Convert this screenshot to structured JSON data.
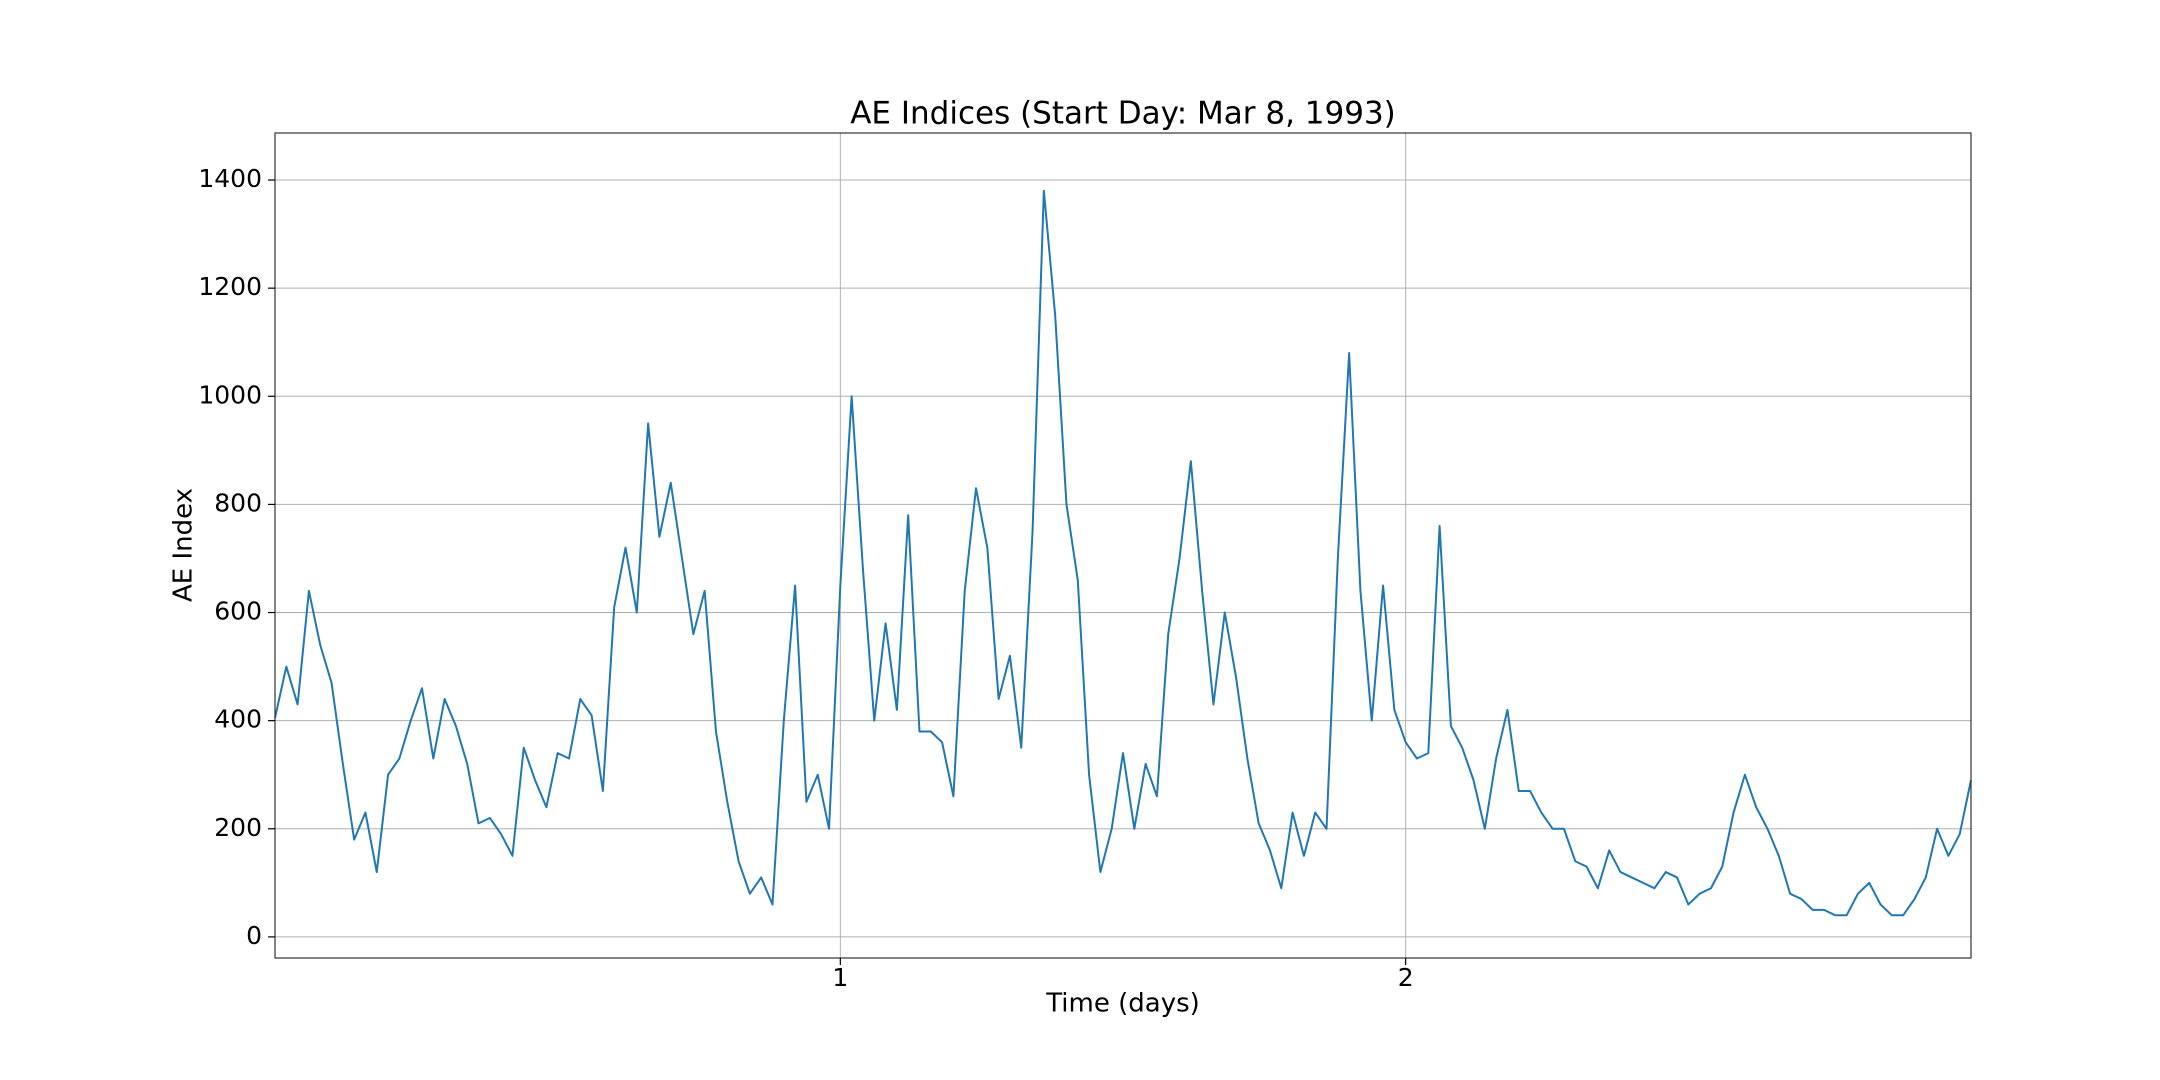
{
  "chart_data": {
    "type": "line",
    "title": "AE Indices (Start Day: Mar 8, 1993)",
    "x_label": "Time (days)",
    "y_label": "AE Index",
    "xlim": [
      0,
      3
    ],
    "ylim": [
      -39,
      1487
    ],
    "xticks": [
      1,
      2
    ],
    "yticks": [
      0,
      200,
      400,
      600,
      800,
      1000,
      1200,
      1400
    ],
    "grid": true,
    "x": [
      0,
      0.02,
      0.04,
      0.06,
      0.08,
      0.1,
      0.12,
      0.14,
      0.16,
      0.18,
      0.2,
      0.22,
      0.24,
      0.26,
      0.28,
      0.3,
      0.32,
      0.34,
      0.36,
      0.38,
      0.4,
      0.42,
      0.44,
      0.46,
      0.48,
      0.5,
      0.52,
      0.54,
      0.56,
      0.58,
      0.6,
      0.62,
      0.64,
      0.66,
      0.68,
      0.7,
      0.72,
      0.74,
      0.76,
      0.78,
      0.8,
      0.82,
      0.84,
      0.86,
      0.88,
      0.9,
      0.92,
      0.94,
      0.96,
      0.98,
      1,
      1.02,
      1.04,
      1.06,
      1.08,
      1.1,
      1.12,
      1.14,
      1.16,
      1.18,
      1.2,
      1.22,
      1.24,
      1.26,
      1.28,
      1.3,
      1.32,
      1.34,
      1.36,
      1.38,
      1.4,
      1.42,
      1.44,
      1.46,
      1.48,
      1.5,
      1.52,
      1.54,
      1.56,
      1.58,
      1.6,
      1.62,
      1.64,
      1.66,
      1.68,
      1.7,
      1.72,
      1.74,
      1.76,
      1.78,
      1.8,
      1.82,
      1.84,
      1.86,
      1.88,
      1.9,
      1.92,
      1.94,
      1.96,
      1.98,
      2,
      2.02,
      2.04,
      2.06,
      2.08,
      2.1,
      2.12,
      2.14,
      2.16,
      2.18,
      2.2,
      2.22,
      2.24,
      2.26,
      2.28,
      2.3,
      2.32,
      2.34,
      2.36,
      2.38,
      2.4,
      2.42,
      2.44,
      2.46,
      2.48,
      2.5,
      2.52,
      2.54,
      2.56,
      2.58,
      2.6,
      2.62,
      2.64,
      2.66,
      2.68,
      2.7,
      2.72,
      2.74,
      2.76,
      2.78,
      2.8,
      2.82,
      2.84,
      2.86,
      2.88,
      2.9,
      2.92,
      2.94,
      2.96,
      2.98,
      3
    ],
    "series": [
      {
        "color": "#1f77b4",
        "values": [
          405,
          500,
          430,
          640,
          540,
          470,
          320,
          180,
          230,
          120,
          300,
          330,
          400,
          460,
          330,
          440,
          390,
          320,
          210,
          220,
          190,
          150,
          350,
          290,
          240,
          340,
          330,
          440,
          410,
          270,
          610,
          720,
          600,
          950,
          740,
          840,
          700,
          560,
          640,
          380,
          250,
          140,
          80,
          110,
          60,
          400,
          650,
          250,
          300,
          200,
          650,
          1000,
          680,
          400,
          580,
          420,
          780,
          380,
          380,
          360,
          260,
          640,
          830,
          720,
          440,
          520,
          350,
          750,
          1380,
          1150,
          800,
          660,
          300,
          120,
          200,
          340,
          200,
          320,
          260,
          560,
          700,
          880,
          640,
          430,
          600,
          480,
          330,
          210,
          160,
          90,
          230,
          150,
          230,
          200,
          700,
          1080,
          640,
          400,
          650,
          420,
          360,
          330,
          340,
          760,
          390,
          350,
          290,
          200,
          330,
          420,
          270,
          270,
          230,
          200,
          200,
          140,
          130,
          90,
          160,
          120,
          110,
          100,
          90,
          120,
          110,
          60,
          80,
          90,
          130,
          230,
          300,
          240,
          200,
          150,
          80,
          70,
          50,
          50,
          40,
          40,
          80,
          100,
          60,
          40,
          40,
          70,
          110,
          200,
          150,
          190,
          290
        ]
      }
    ]
  }
}
